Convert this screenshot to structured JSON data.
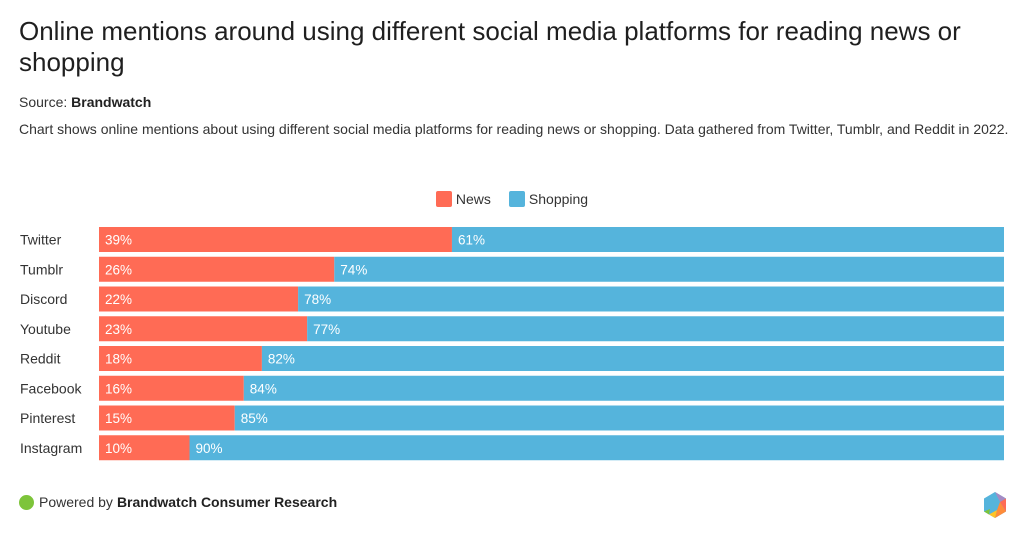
{
  "header": {
    "title": "Online mentions around using different social media platforms for reading news or shopping",
    "source_label": "Source:",
    "source_name": "Brandwatch",
    "description": "Chart shows online mentions about using different social media platforms for reading news or shopping. Data gathered from Twitter, Tumblr, and Reddit in 2022."
  },
  "legend": [
    {
      "label": "News",
      "color": "#ff6b55"
    },
    {
      "label": "Shopping",
      "color": "#55b4dc"
    }
  ],
  "footer": {
    "powered_label": "Powered by",
    "brand": "Brandwatch Consumer Research",
    "dot_color": "#7dc43a",
    "logo_icon": "hexagon-logo-icon"
  },
  "chart_data": {
    "type": "bar",
    "orientation": "horizontal",
    "stacked": true,
    "normalized": true,
    "title": "Online mentions around using different social media platforms for reading news or shopping",
    "xlabel": "",
    "ylabel": "",
    "xlim": [
      0,
      100
    ],
    "grid": false,
    "legend_position": "top-center",
    "categories": [
      "Twitter",
      "Tumblr",
      "Discord",
      "Youtube",
      "Reddit",
      "Facebook",
      "Pinterest",
      "Instagram"
    ],
    "series": [
      {
        "name": "News",
        "color": "#ff6b55",
        "values": [
          39,
          26,
          22,
          23,
          18,
          16,
          15,
          10
        ]
      },
      {
        "name": "Shopping",
        "color": "#55b4dc",
        "values": [
          61,
          74,
          78,
          77,
          82,
          84,
          85,
          90
        ]
      }
    ],
    "value_suffix": "%"
  }
}
